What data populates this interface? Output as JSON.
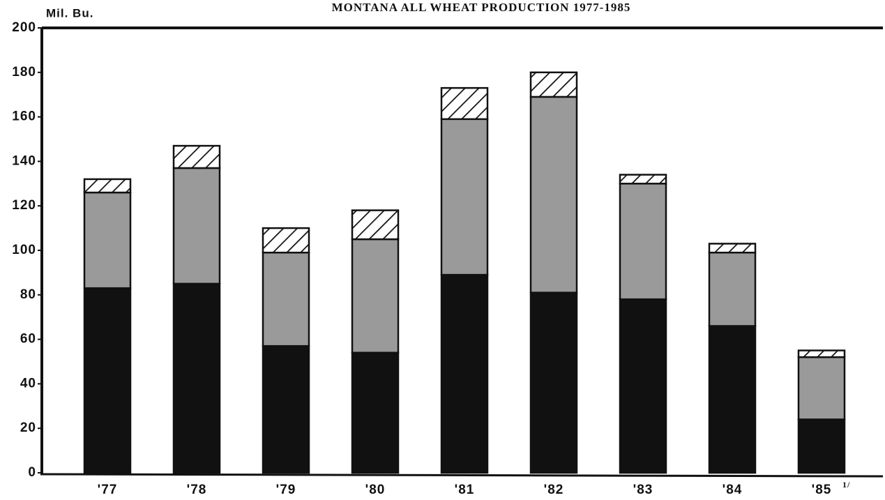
{
  "chart_data": {
    "type": "stacked_bar",
    "title": "MONTANA ALL  WHEAT PRODUCTION 1977-1985",
    "y_label": "Mil. Bu.",
    "categories": [
      "'77",
      "'78",
      "'79",
      "'80",
      "'81",
      "'82",
      "'83",
      "'84",
      "'85"
    ],
    "footnote_marker": "1/",
    "series": [
      {
        "color": "#111111",
        "values": [
          83,
          85,
          57,
          54,
          89,
          81,
          78,
          66,
          24
        ]
      },
      {
        "color": "#9a9a9a",
        "values": [
          43,
          52,
          42,
          51,
          70,
          88,
          52,
          33,
          28
        ]
      },
      {
        "color": "#ffffff",
        "pattern": "hatch",
        "values": [
          6,
          10,
          11,
          13,
          14,
          11,
          4,
          4,
          3
        ]
      }
    ],
    "ylim": [
      0,
      200
    ],
    "yticks": [
      0,
      20,
      40,
      60,
      80,
      100,
      120,
      140,
      160,
      180,
      200
    ],
    "grid": false
  }
}
